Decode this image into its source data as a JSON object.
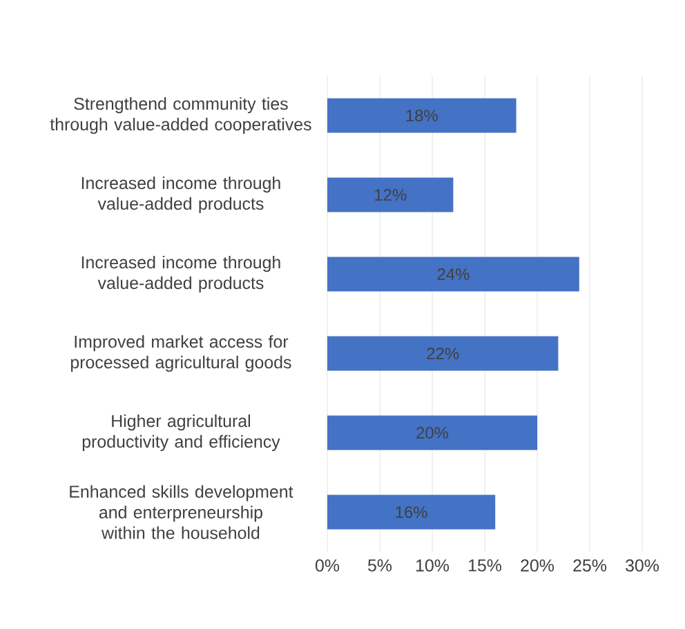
{
  "chart_data": {
    "type": "bar",
    "orientation": "horizontal",
    "categories": [
      "Strengthend community ties through value-added cooperatives",
      "Increased income through value-added products",
      "Increased income through value-added products",
      "Improved market access for processed agricultural goods",
      "Higher agricultural productivity and efficiency",
      "Enhanced skills development and enterpreneurship within the household"
    ],
    "values": [
      18,
      12,
      24,
      22,
      20,
      16
    ],
    "value_labels": [
      "18%",
      "12%",
      "24%",
      "22%",
      "20%",
      "16%"
    ],
    "color": "#4472c4",
    "xlim": [
      0,
      30
    ],
    "xticks": [
      {
        "value": 0,
        "label": "0%"
      },
      {
        "value": 5,
        "label": "5%"
      },
      {
        "value": 10,
        "label": "10%"
      },
      {
        "value": 15,
        "label": "15%"
      },
      {
        "value": 20,
        "label": "20%"
      },
      {
        "value": 25,
        "label": "25%"
      },
      {
        "value": 30,
        "label": "30%"
      }
    ],
    "grid": "x"
  }
}
